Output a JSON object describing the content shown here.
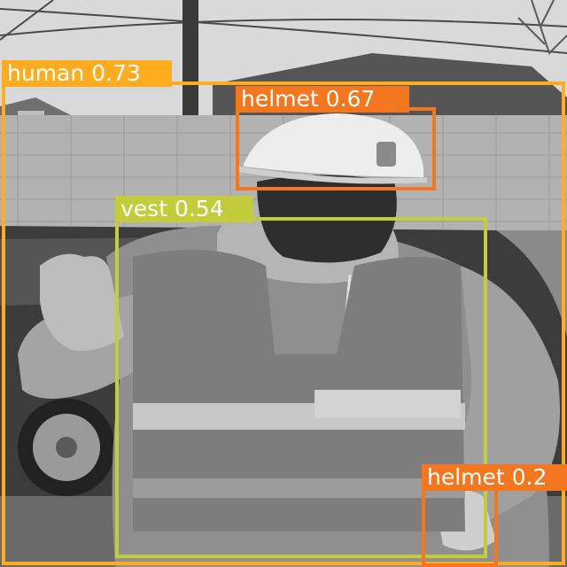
{
  "detections": [
    {
      "label": "human 0.73",
      "color": "#FFAD1F"
    },
    {
      "label": "helmet 0.67",
      "color": "#F4771F"
    },
    {
      "label": "vest 0.54",
      "color": "#C3CC3A"
    },
    {
      "label": "helmet 0.2",
      "color": "#F4771F"
    }
  ]
}
